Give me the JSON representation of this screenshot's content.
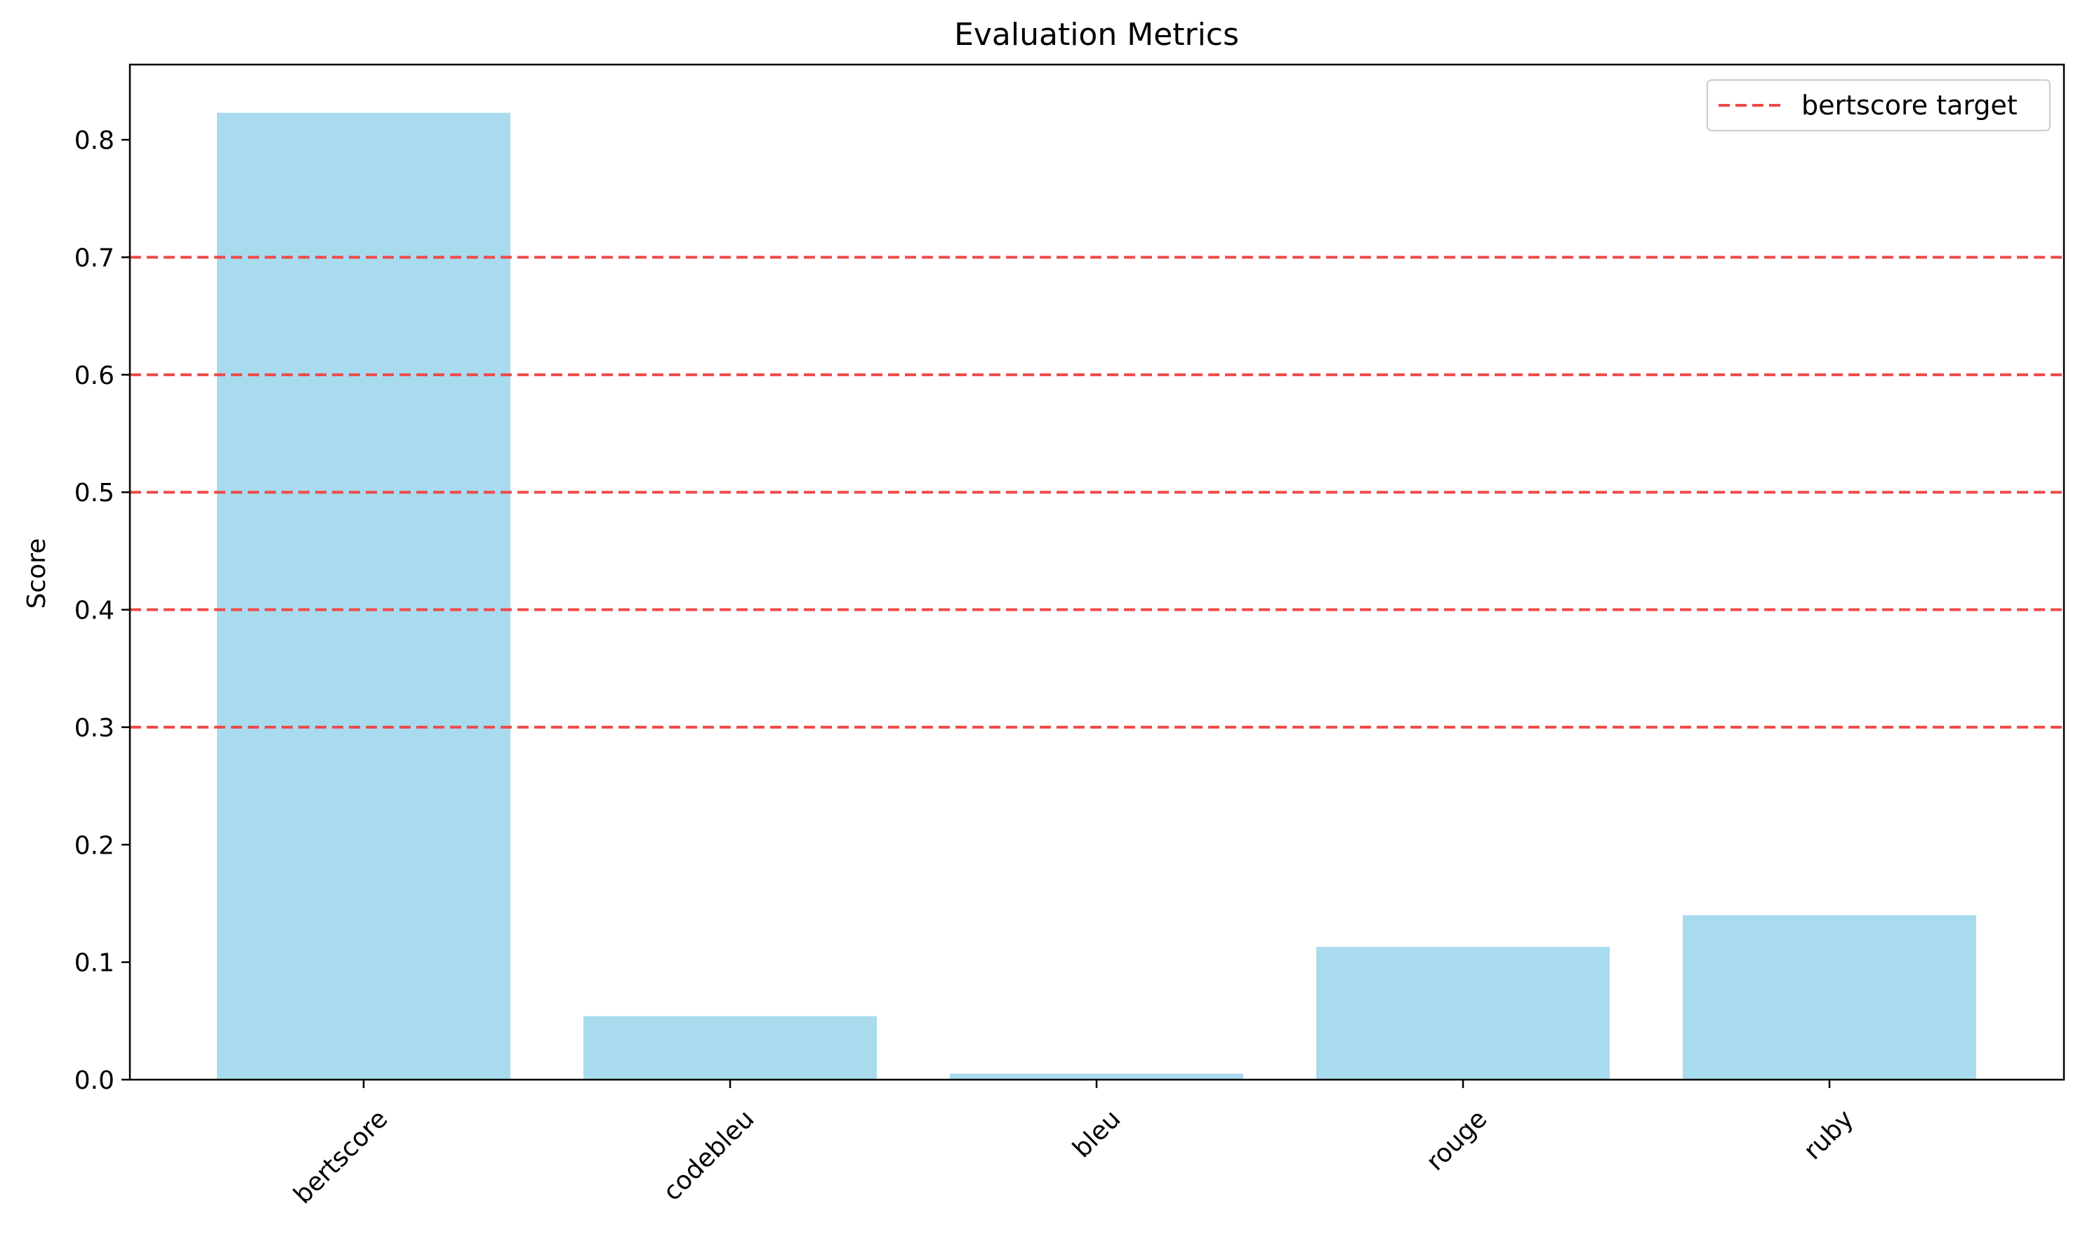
{
  "chart_data": {
    "type": "bar",
    "title": "Evaluation Metrics",
    "xlabel": "",
    "ylabel": "Score",
    "categories": [
      "bertscore",
      "codebleu",
      "bleu",
      "rouge",
      "ruby"
    ],
    "values": [
      0.823,
      0.054,
      0.005,
      0.113,
      0.14
    ],
    "ylim": [
      0,
      0.864
    ],
    "yticks": [
      0.0,
      0.1,
      0.2,
      0.3,
      0.4,
      0.5,
      0.6,
      0.7,
      0.8
    ],
    "ytick_labels": [
      "0.0",
      "0.1",
      "0.2",
      "0.3",
      "0.4",
      "0.5",
      "0.6",
      "0.7",
      "0.8"
    ],
    "reference_lines": [
      0.3,
      0.4,
      0.5,
      0.6,
      0.7
    ],
    "reference_line_label": "bertscore target",
    "legend_position": "top-right",
    "grid": false,
    "colors": {
      "bar": "#a8dbee",
      "reference_line": "#f04a4a",
      "axis": "#000000"
    }
  }
}
